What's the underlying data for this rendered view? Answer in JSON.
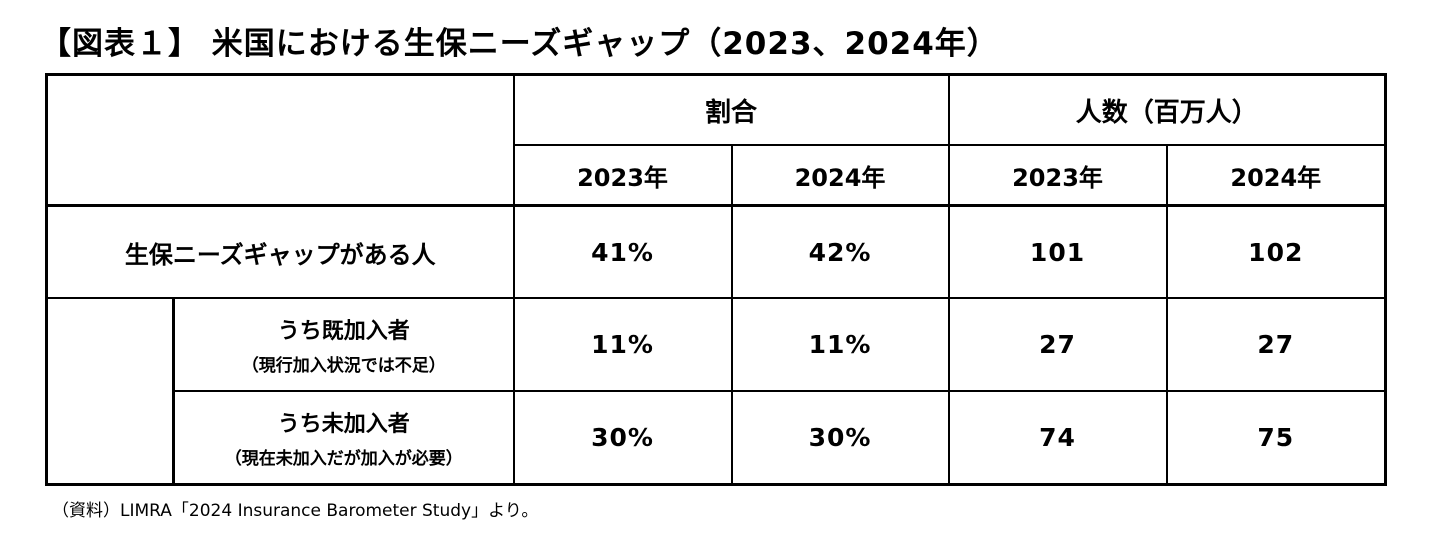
{
  "title": "【図表１】 米国における生保ニーズギャップ（2023、2024年）",
  "header": {
    "group_ratio": "割合",
    "group_people": "人数（百万人）",
    "years": [
      "2023年",
      "2024年",
      "2023年",
      "2024年"
    ]
  },
  "rows": [
    {
      "label": "生保ニーズギャップがある人",
      "note": "",
      "values": [
        "41%",
        "42%",
        "101",
        "102"
      ]
    },
    {
      "label": "うち既加入者",
      "note": "（現行加入状況では不足）",
      "values": [
        "11%",
        "11%",
        "27",
        "27"
      ]
    },
    {
      "label": "うち未加入者",
      "note": "（現在未加入だが加入が必要）",
      "values": [
        "30%",
        "30%",
        "74",
        "75"
      ]
    }
  ],
  "source": "（資料）LIMRA「2024 Insurance Barometer Study」より。"
}
